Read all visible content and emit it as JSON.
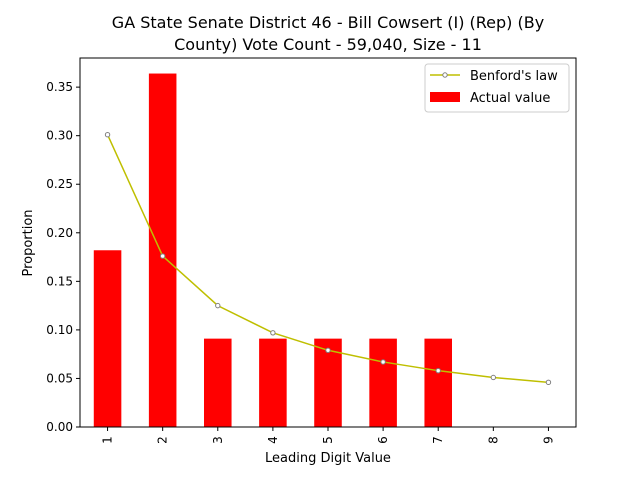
{
  "chart_data": {
    "type": "bar",
    "title_line1": "GA State Senate District 46 - Bill Cowsert (I) (Rep) (By",
    "title_line2": "County) Vote Count - 59,040, Size - 11",
    "xlabel": "Leading Digit Value",
    "ylabel": "Proportion",
    "categories": [
      "1",
      "2",
      "3",
      "4",
      "5",
      "6",
      "7",
      "8",
      "9"
    ],
    "ylim": [
      0,
      0.38
    ],
    "yticks": [
      "0.00",
      "0.05",
      "0.10",
      "0.15",
      "0.20",
      "0.25",
      "0.30",
      "0.35"
    ],
    "series": [
      {
        "name": "Actual value",
        "kind": "bar",
        "color": "#ff0000",
        "values": [
          0.182,
          0.364,
          0.091,
          0.091,
          0.091,
          0.091,
          0.091,
          0.0,
          0.0
        ]
      },
      {
        "name": "Benford's law",
        "kind": "line",
        "color": "#bfbf00",
        "values": [
          0.301,
          0.176,
          0.125,
          0.097,
          0.079,
          0.067,
          0.058,
          0.051,
          0.046
        ]
      }
    ],
    "legend_position": "top-right",
    "grid": false
  }
}
